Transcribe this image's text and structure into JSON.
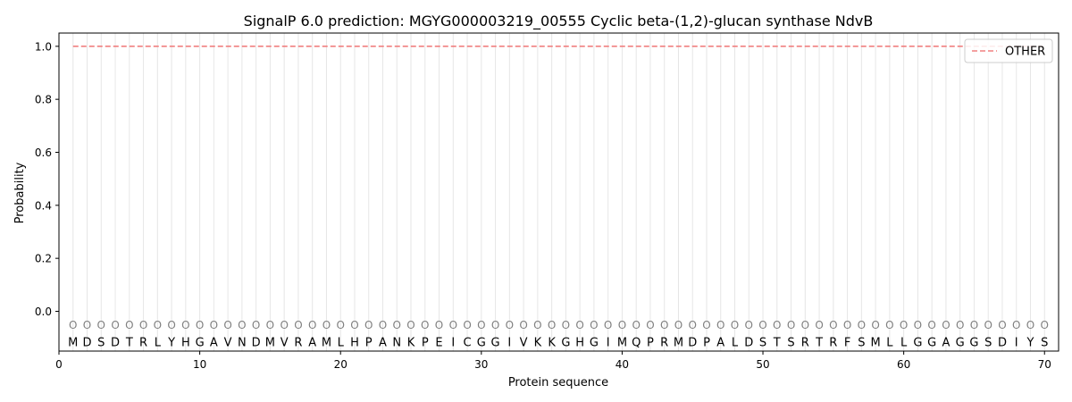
{
  "chart_data": {
    "type": "line",
    "title": "SignalP 6.0 prediction: MGYG000003219_00555 Cyclic beta-(1,2)-glucan synthase NdvB",
    "xlabel": "Protein sequence",
    "ylabel": "Probability",
    "xlim": [
      0,
      71
    ],
    "ylim": [
      -0.15,
      1.05
    ],
    "x_ticks": [
      0,
      10,
      20,
      30,
      40,
      50,
      60,
      70
    ],
    "y_ticks": [
      0.0,
      0.2,
      0.4,
      0.6,
      0.8,
      1.0
    ],
    "y_tick_labels": [
      "0.0",
      "0.2",
      "0.4",
      "0.6",
      "0.8",
      "1.0"
    ],
    "sequence": [
      "M",
      "D",
      "S",
      "D",
      "T",
      "R",
      "L",
      "Y",
      "H",
      "G",
      "A",
      "V",
      "N",
      "D",
      "M",
      "V",
      "R",
      "A",
      "M",
      "L",
      "H",
      "P",
      "A",
      "N",
      "K",
      "P",
      "E",
      "I",
      "C",
      "G",
      "G",
      "I",
      "V",
      "K",
      "K",
      "G",
      "H",
      "G",
      "I",
      "M",
      "Q",
      "P",
      "R",
      "M",
      "D",
      "P",
      "A",
      "L",
      "D",
      "S",
      "T",
      "S",
      "R",
      "T",
      "R",
      "F",
      "S",
      "M",
      "L",
      "L",
      "G",
      "G",
      "A",
      "G",
      "G",
      "S",
      "D",
      "I",
      "Y",
      "S"
    ],
    "region_label": "O",
    "series": [
      {
        "name": "OTHER",
        "color": "#f08080",
        "style": "dashed",
        "x_start": 1,
        "x_end": 70,
        "value": 1.0
      }
    ],
    "legend": {
      "position": "top-right",
      "entries": [
        "OTHER"
      ]
    },
    "grid": {
      "vertical_at_residues": true,
      "horizontal": false
    }
  }
}
